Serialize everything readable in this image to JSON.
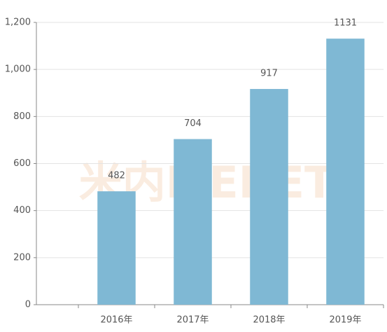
{
  "chart_data": {
    "type": "bar",
    "categories": [
      "2016年",
      "2017年",
      "2018年",
      "2019年"
    ],
    "values": [
      482,
      704,
      917,
      1131
    ],
    "color": "#7fb8d4",
    "ylim": [
      0,
      1200
    ],
    "yticks": [
      0,
      200,
      400,
      600,
      800,
      {
        "value": 1000,
        "label": "1,000"
      },
      {
        "value": 1200,
        "label": "1,200"
      }
    ],
    "grid": true,
    "watermark": "米内MENET"
  }
}
